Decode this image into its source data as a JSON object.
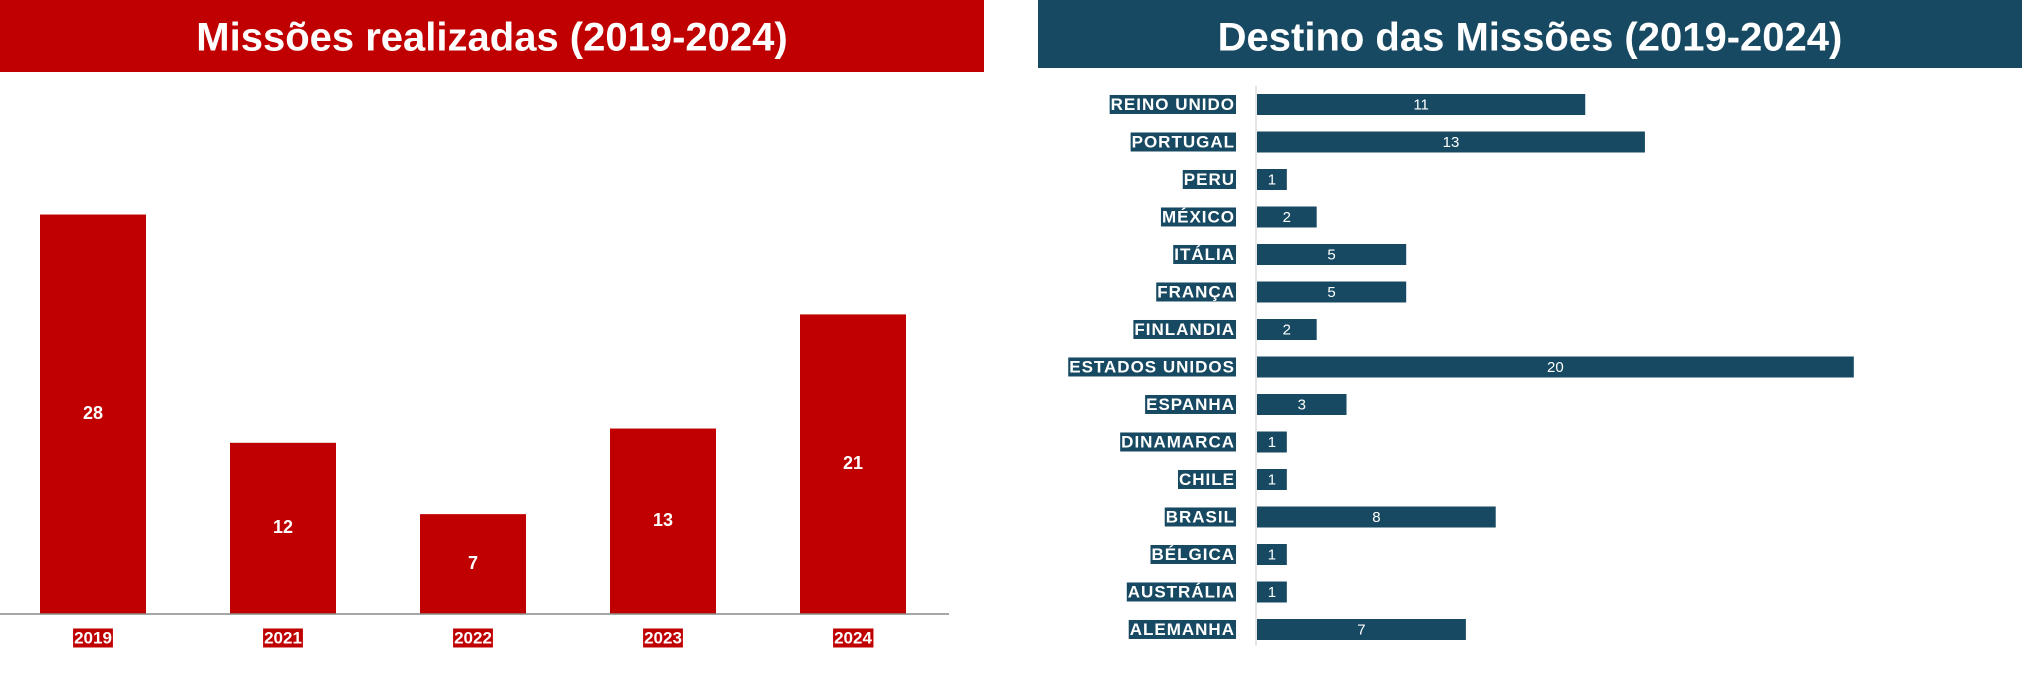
{
  "chart_data": [
    {
      "type": "bar",
      "title": "Missões realizadas (2019-2024)",
      "categories": [
        "2019",
        "2021",
        "2022",
        "2023",
        "2024"
      ],
      "values": [
        28,
        12,
        7,
        13,
        21
      ],
      "color": "#c00000",
      "ylim": [
        0,
        30
      ]
    },
    {
      "type": "hbar",
      "title": "Destino das Missões (2019-2024)",
      "categories": [
        "REINO UNIDO",
        "PORTUGAL",
        "PERU",
        "MÉXICO",
        "ITÁLIA",
        "FRANÇA",
        "FINLANDIA",
        "ESTADOS UNIDOS",
        "ESPANHA",
        "DINAMARCA",
        "CHILE",
        "BRASIL",
        "BÉLGICA",
        "AUSTRÁLIA",
        "ALEMANHA"
      ],
      "values": [
        11,
        13,
        1,
        2,
        5,
        5,
        2,
        20,
        3,
        1,
        1,
        8,
        1,
        1,
        7
      ],
      "color": "#174a62",
      "xlim": [
        0,
        25
      ]
    }
  ]
}
